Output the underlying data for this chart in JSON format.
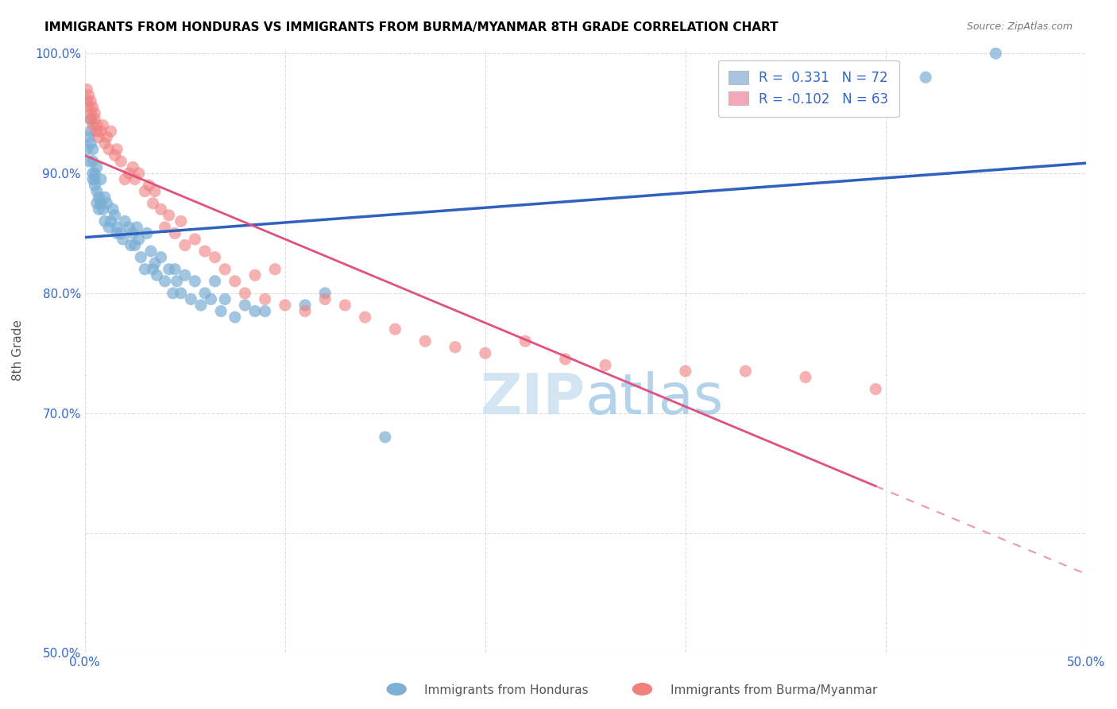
{
  "title": "IMMIGRANTS FROM HONDURAS VS IMMIGRANTS FROM BURMA/MYANMAR 8TH GRADE CORRELATION CHART",
  "source": "Source: ZipAtlas.com",
  "xlabel": "",
  "ylabel": "8th Grade",
  "xlim": [
    0.0,
    0.5
  ],
  "ylim": [
    0.5,
    1.005
  ],
  "xticks": [
    0.0,
    0.1,
    0.2,
    0.3,
    0.4,
    0.5
  ],
  "xticklabels": [
    "0.0%",
    "",
    "",
    "",
    "",
    "50.0%"
  ],
  "yticks": [
    0.5,
    0.6,
    0.7,
    0.8,
    0.9,
    1.0
  ],
  "yticklabels": [
    "50.0%",
    "",
    "70.0%",
    "80.0%",
    "90.0%",
    "100.0%"
  ],
  "legend1_label": "R =  0.331   N = 72",
  "legend2_label": "R = -0.102   N = 63",
  "legend1_color": "#a8c4e0",
  "legend2_color": "#f4a7b9",
  "blue_color": "#7bafd4",
  "pink_color": "#f08080",
  "trend_blue": "#3060c0",
  "trend_pink": "#e05080",
  "watermark_zip": "ZIP",
  "watermark_atlas": "atlas",
  "blue_x": [
    0.001,
    0.002,
    0.002,
    0.003,
    0.003,
    0.003,
    0.004,
    0.004,
    0.004,
    0.004,
    0.005,
    0.005,
    0.005,
    0.006,
    0.006,
    0.006,
    0.007,
    0.007,
    0.008,
    0.008,
    0.009,
    0.01,
    0.01,
    0.011,
    0.012,
    0.013,
    0.014,
    0.015,
    0.016,
    0.016,
    0.018,
    0.019,
    0.02,
    0.022,
    0.023,
    0.024,
    0.025,
    0.026,
    0.027,
    0.028,
    0.03,
    0.031,
    0.033,
    0.034,
    0.035,
    0.036,
    0.038,
    0.04,
    0.042,
    0.044,
    0.045,
    0.046,
    0.048,
    0.05,
    0.053,
    0.055,
    0.058,
    0.06,
    0.063,
    0.065,
    0.068,
    0.07,
    0.075,
    0.08,
    0.085,
    0.09,
    0.11,
    0.12,
    0.15,
    0.38,
    0.42,
    0.455
  ],
  "blue_y": [
    0.92,
    0.93,
    0.91,
    0.935,
    0.945,
    0.925,
    0.92,
    0.9,
    0.91,
    0.895,
    0.895,
    0.89,
    0.9,
    0.885,
    0.905,
    0.875,
    0.88,
    0.87,
    0.875,
    0.895,
    0.87,
    0.88,
    0.86,
    0.875,
    0.855,
    0.86,
    0.87,
    0.865,
    0.85,
    0.855,
    0.85,
    0.845,
    0.86,
    0.855,
    0.84,
    0.85,
    0.84,
    0.855,
    0.845,
    0.83,
    0.82,
    0.85,
    0.835,
    0.82,
    0.825,
    0.815,
    0.83,
    0.81,
    0.82,
    0.8,
    0.82,
    0.81,
    0.8,
    0.815,
    0.795,
    0.81,
    0.79,
    0.8,
    0.795,
    0.81,
    0.785,
    0.795,
    0.78,
    0.79,
    0.785,
    0.785,
    0.79,
    0.8,
    0.68,
    0.97,
    0.98,
    1.0
  ],
  "pink_x": [
    0.001,
    0.001,
    0.002,
    0.002,
    0.003,
    0.003,
    0.003,
    0.004,
    0.004,
    0.005,
    0.005,
    0.006,
    0.006,
    0.007,
    0.008,
    0.009,
    0.01,
    0.011,
    0.012,
    0.013,
    0.015,
    0.016,
    0.018,
    0.02,
    0.022,
    0.024,
    0.025,
    0.027,
    0.03,
    0.032,
    0.034,
    0.035,
    0.038,
    0.04,
    0.042,
    0.045,
    0.048,
    0.05,
    0.055,
    0.06,
    0.065,
    0.07,
    0.075,
    0.08,
    0.085,
    0.09,
    0.095,
    0.1,
    0.11,
    0.12,
    0.13,
    0.14,
    0.155,
    0.17,
    0.185,
    0.2,
    0.22,
    0.24,
    0.26,
    0.3,
    0.33,
    0.36,
    0.395
  ],
  "pink_y": [
    0.96,
    0.97,
    0.955,
    0.965,
    0.95,
    0.96,
    0.945,
    0.955,
    0.94,
    0.95,
    0.945,
    0.935,
    0.94,
    0.93,
    0.935,
    0.94,
    0.925,
    0.93,
    0.92,
    0.935,
    0.915,
    0.92,
    0.91,
    0.895,
    0.9,
    0.905,
    0.895,
    0.9,
    0.885,
    0.89,
    0.875,
    0.885,
    0.87,
    0.855,
    0.865,
    0.85,
    0.86,
    0.84,
    0.845,
    0.835,
    0.83,
    0.82,
    0.81,
    0.8,
    0.815,
    0.795,
    0.82,
    0.79,
    0.785,
    0.795,
    0.79,
    0.78,
    0.77,
    0.76,
    0.755,
    0.75,
    0.76,
    0.745,
    0.74,
    0.735,
    0.735,
    0.73,
    0.72
  ]
}
